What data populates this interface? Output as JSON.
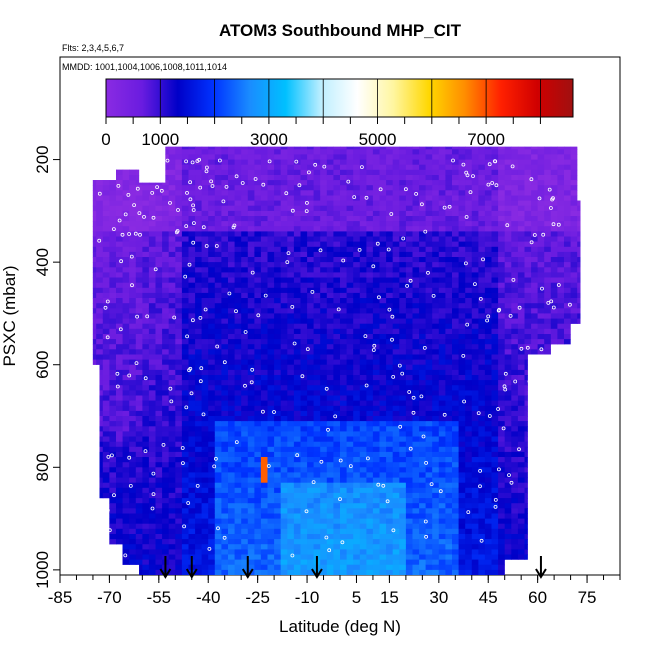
{
  "chart_data": {
    "type": "heatmap",
    "title": "ATOM3 Southbound MHP_CIT",
    "subtitle_flights": "Flts: 2,3,4,5,6,7",
    "subtitle_dates": "MMDD: 1001,1004,1006,1008,1011,1014",
    "xlabel": "Latitude (deg N)",
    "ylabel": "PSXC (mbar)",
    "xlim": [
      -85,
      85
    ],
    "ylim": [
      1010,
      0
    ],
    "x_tick_labels": [
      "-85",
      "-70",
      "-55",
      "-40",
      "-25",
      "-10",
      "5",
      "15",
      "30",
      "45",
      "60",
      "75"
    ],
    "x_tick_values": [
      -85,
      -70,
      -55,
      -40,
      -25,
      -10,
      5,
      15,
      30,
      45,
      60,
      75
    ],
    "y_tick_labels": [
      "200",
      "400",
      "600",
      "800",
      "1000"
    ],
    "y_tick_values": [
      200,
      400,
      600,
      800,
      1000
    ],
    "colorbar": {
      "min": 0,
      "max": 8600,
      "tick_labels": [
        "0",
        "1000",
        "3000",
        "5000",
        "7000"
      ],
      "tick_values": [
        0,
        1000,
        3000,
        5000,
        7000
      ],
      "colors": [
        "#8a2be2",
        "#6a1ce0",
        "#0000c8",
        "#0033ff",
        "#1a8cff",
        "#00c0ff",
        "#bfefff",
        "#ffffff",
        "#fff6a0",
        "#ffd700",
        "#ff8c00",
        "#ff2000",
        "#d00000",
        "#a01010"
      ]
    },
    "background_color": "#7a2fe6",
    "high_value_feature": {
      "lat": -23,
      "pressure": 790,
      "value": 7500
    },
    "arrow_latitudes": [
      -53,
      -45,
      -28,
      -7,
      61
    ]
  }
}
